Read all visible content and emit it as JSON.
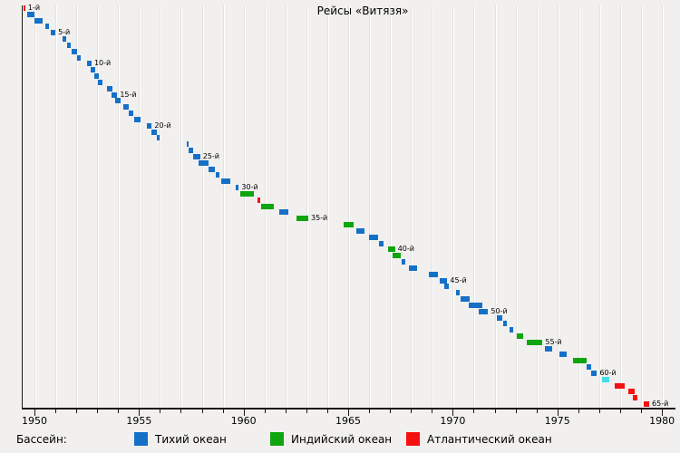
{
  "title": "Рейсы «Витязя»",
  "chart_data": {
    "type": "gantt",
    "title": "Рейсы «Витязя»",
    "x_axis": {
      "unit": "year",
      "range": [
        1949.4,
        1980.65
      ],
      "grid_start": 1950,
      "grid_end": 1980,
      "grid_step": 1,
      "major_ticks": [
        {
          "year": 1950,
          "label": "1950"
        },
        {
          "year": 1955,
          "label": "1955"
        },
        {
          "year": 1960,
          "label": "1960"
        },
        {
          "year": 1965,
          "label": "1965"
        },
        {
          "year": 1970,
          "label": "1970"
        },
        {
          "year": 1975,
          "label": "1975"
        },
        {
          "year": 1980,
          "label": "1980"
        }
      ]
    },
    "y_axis": {
      "unit": "voyage-number",
      "min": 1,
      "max": 65,
      "direction": "top-to-bottom"
    },
    "colors": {
      "pacific": "#1570C8",
      "indian": "#0FA50F",
      "atlantic": "#F51111",
      "cyan": "#45DDEA"
    },
    "legend": {
      "heading": "Бассейн:",
      "entries": [
        {
          "label": "Тихий океан",
          "color_key": "pacific"
        },
        {
          "label": "Индийский океан",
          "color_key": "indian"
        },
        {
          "label": "Атлантический океан",
          "color_key": "atlantic"
        }
      ]
    },
    "voyages": [
      {
        "n": 1,
        "basin": "atlantic",
        "start": 1949.46,
        "end": 1949.56,
        "label": "1-й"
      },
      {
        "n": 2,
        "basin": "pacific",
        "start": 1949.67,
        "end": 1949.99
      },
      {
        "n": 3,
        "basin": "pacific",
        "start": 1950.0,
        "end": 1950.39
      },
      {
        "n": 4,
        "basin": "pacific",
        "start": 1950.51,
        "end": 1950.71
      },
      {
        "n": 5,
        "basin": "pacific",
        "start": 1950.79,
        "end": 1951.0,
        "label": "5-й"
      },
      {
        "n": 6,
        "basin": "pacific",
        "start": 1951.33,
        "end": 1951.52
      },
      {
        "n": 7,
        "basin": "pacific",
        "start": 1951.55,
        "end": 1951.73
      },
      {
        "n": 8,
        "basin": "pacific",
        "start": 1951.79,
        "end": 1952.02
      },
      {
        "n": 9,
        "basin": "pacific",
        "start": 1952.04,
        "end": 1952.21
      },
      {
        "n": 10,
        "basin": "pacific",
        "start": 1952.5,
        "end": 1952.73,
        "label": "10-й"
      },
      {
        "n": 11,
        "basin": "pacific",
        "start": 1952.69,
        "end": 1952.9
      },
      {
        "n": 12,
        "basin": "pacific",
        "start": 1952.87,
        "end": 1953.09
      },
      {
        "n": 13,
        "basin": "pacific",
        "start": 1953.05,
        "end": 1953.26
      },
      {
        "n": 14,
        "basin": "pacific",
        "start": 1953.48,
        "end": 1953.74
      },
      {
        "n": 15,
        "basin": "pacific",
        "start": 1953.7,
        "end": 1953.96,
        "label": "15-й"
      },
      {
        "n": 16,
        "basin": "pacific",
        "start": 1953.84,
        "end": 1954.13
      },
      {
        "n": 17,
        "basin": "pacific",
        "start": 1954.25,
        "end": 1954.49
      },
      {
        "n": 18,
        "basin": "pacific",
        "start": 1954.49,
        "end": 1954.74
      },
      {
        "n": 19,
        "basin": "pacific",
        "start": 1954.78,
        "end": 1955.07
      },
      {
        "n": 20,
        "basin": "pacific",
        "start": 1955.36,
        "end": 1955.61,
        "label": "20-й"
      },
      {
        "n": 21,
        "basin": "pacific",
        "start": 1955.61,
        "end": 1955.87
      },
      {
        "n": 22,
        "basin": "pacific",
        "start": 1955.87,
        "end": 1955.98
      },
      {
        "n": 23,
        "basin": "pacific",
        "start": 1957.28,
        "end": 1957.38
      },
      {
        "n": 24,
        "basin": "pacific",
        "start": 1957.38,
        "end": 1957.6
      },
      {
        "n": 25,
        "basin": "pacific",
        "start": 1957.6,
        "end": 1957.92,
        "label": "25-й"
      },
      {
        "n": 26,
        "basin": "pacific",
        "start": 1957.86,
        "end": 1958.32
      },
      {
        "n": 27,
        "basin": "pacific",
        "start": 1958.32,
        "end": 1958.61
      },
      {
        "n": 28,
        "basin": "pacific",
        "start": 1958.68,
        "end": 1958.83
      },
      {
        "n": 29,
        "basin": "pacific",
        "start": 1958.93,
        "end": 1959.36
      },
      {
        "n": 30,
        "basin": "pacific",
        "start": 1959.62,
        "end": 1959.77,
        "label": "30-й"
      },
      {
        "n": 31,
        "basin": "indian",
        "start": 1959.84,
        "end": 1960.49
      },
      {
        "n": 32,
        "basin": "atlantic",
        "start": 1960.68,
        "end": 1960.81
      },
      {
        "n": 33,
        "basin": "indian",
        "start": 1960.85,
        "end": 1961.43
      },
      {
        "n": 34,
        "basin": "pacific",
        "start": 1961.69,
        "end": 1962.12
      },
      {
        "n": 35,
        "basin": "indian",
        "start": 1962.51,
        "end": 1963.09,
        "label": "35-й"
      },
      {
        "n": 36,
        "basin": "indian",
        "start": 1964.79,
        "end": 1965.26
      },
      {
        "n": 37,
        "basin": "pacific",
        "start": 1965.4,
        "end": 1965.77
      },
      {
        "n": 38,
        "basin": "pacific",
        "start": 1965.98,
        "end": 1966.44
      },
      {
        "n": 39,
        "basin": "pacific",
        "start": 1966.46,
        "end": 1966.7
      },
      {
        "n": 40,
        "basin": "indian",
        "start": 1966.89,
        "end": 1967.24,
        "label": "40-й"
      },
      {
        "n": 41,
        "basin": "indian",
        "start": 1967.13,
        "end": 1967.5
      },
      {
        "n": 42,
        "basin": "pacific",
        "start": 1967.57,
        "end": 1967.71
      },
      {
        "n": 43,
        "basin": "pacific",
        "start": 1967.9,
        "end": 1968.29
      },
      {
        "n": 44,
        "basin": "pacific",
        "start": 1968.87,
        "end": 1969.3
      },
      {
        "n": 45,
        "basin": "pacific",
        "start": 1969.38,
        "end": 1969.74,
        "label": "45-й"
      },
      {
        "n": 46,
        "basin": "pacific",
        "start": 1969.6,
        "end": 1969.8
      },
      {
        "n": 47,
        "basin": "pacific",
        "start": 1970.17,
        "end": 1970.32
      },
      {
        "n": 48,
        "basin": "pacific",
        "start": 1970.39,
        "end": 1970.82
      },
      {
        "n": 49,
        "basin": "pacific",
        "start": 1970.78,
        "end": 1971.4
      },
      {
        "n": 50,
        "basin": "pacific",
        "start": 1971.26,
        "end": 1971.69,
        "label": "50-й"
      },
      {
        "n": 51,
        "basin": "pacific",
        "start": 1972.1,
        "end": 1972.37
      },
      {
        "n": 52,
        "basin": "pacific",
        "start": 1972.41,
        "end": 1972.6
      },
      {
        "n": 53,
        "basin": "pacific",
        "start": 1972.7,
        "end": 1972.89
      },
      {
        "n": 54,
        "basin": "indian",
        "start": 1973.06,
        "end": 1973.38
      },
      {
        "n": 55,
        "basin": "indian",
        "start": 1973.54,
        "end": 1974.29,
        "label": "55-й"
      },
      {
        "n": 56,
        "basin": "pacific",
        "start": 1974.4,
        "end": 1974.74
      },
      {
        "n": 57,
        "basin": "pacific",
        "start": 1975.08,
        "end": 1975.44
      },
      {
        "n": 58,
        "basin": "indian",
        "start": 1975.73,
        "end": 1976.38
      },
      {
        "n": 59,
        "basin": "pacific",
        "start": 1976.38,
        "end": 1976.6
      },
      {
        "n": 60,
        "basin": "pacific",
        "start": 1976.63,
        "end": 1976.89,
        "label": "60-й"
      },
      {
        "n": 61,
        "basin": "cyan",
        "start": 1977.15,
        "end": 1977.48
      },
      {
        "n": 62,
        "basin": "atlantic",
        "start": 1977.73,
        "end": 1978.22
      },
      {
        "n": 63,
        "basin": "atlantic",
        "start": 1978.38,
        "end": 1978.7
      },
      {
        "n": 64,
        "basin": "atlantic",
        "start": 1978.62,
        "end": 1978.84
      },
      {
        "n": 65,
        "basin": "atlantic",
        "start": 1979.13,
        "end": 1979.39,
        "label": "65-й"
      }
    ]
  }
}
